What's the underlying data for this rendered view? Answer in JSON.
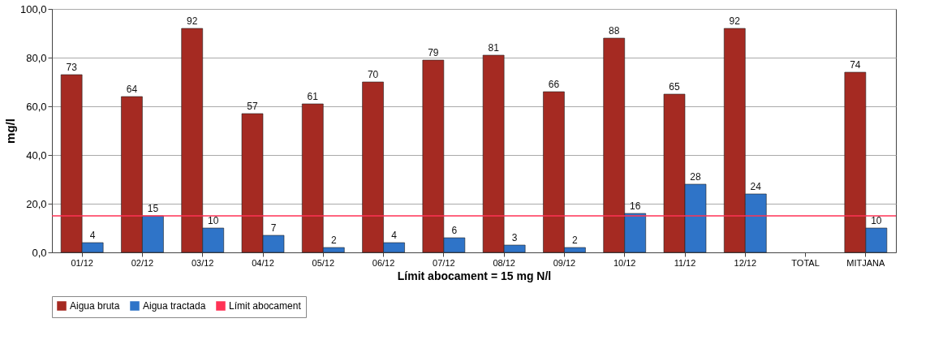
{
  "chart_data": {
    "type": "bar",
    "xlabel": "Límit abocament = 15 mg N/l",
    "ylabel": "mg/l",
    "categories": [
      "01/12",
      "02/12",
      "03/12",
      "04/12",
      "05/12",
      "06/12",
      "07/12",
      "08/12",
      "09/12",
      "10/12",
      "11/12",
      "12/12",
      "TOTAL",
      "MITJANA"
    ],
    "series": [
      {
        "name": "Aigua bruta",
        "color": "#a52a22",
        "values": [
          73,
          64,
          92,
          57,
          61,
          70,
          79,
          81,
          66,
          88,
          65,
          92,
          null,
          74
        ]
      },
      {
        "name": "Aigua tractada",
        "color": "#2f74c8",
        "values": [
          4,
          15,
          10,
          7,
          2,
          4,
          6,
          3,
          2,
          16,
          28,
          24,
          null,
          10
        ]
      }
    ],
    "ylim": [
      0,
      100
    ],
    "yticks": [
      {
        "value": 0,
        "label": "0,0"
      },
      {
        "value": 20,
        "label": "20,0"
      },
      {
        "value": 40,
        "label": "40,0"
      },
      {
        "value": 60,
        "label": "60,0"
      },
      {
        "value": 80,
        "label": "80,0"
      },
      {
        "value": 100,
        "label": "100,0"
      }
    ],
    "ref_lines": [
      {
        "axis": "y",
        "value": 15,
        "label": "Límit abocament",
        "color": "#ff3355"
      }
    ],
    "data_labels": true,
    "grid": "y",
    "legend": "bottom"
  }
}
